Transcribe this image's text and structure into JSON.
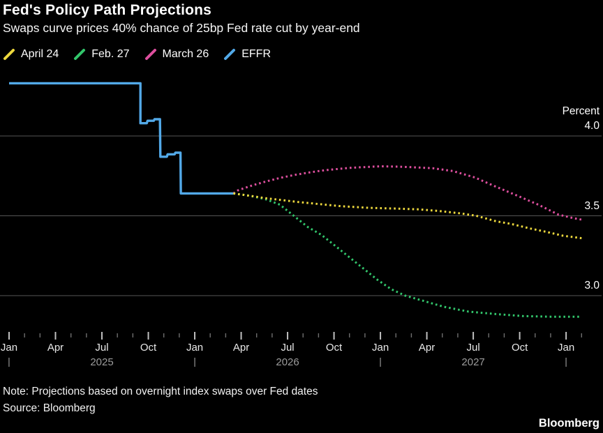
{
  "header": {
    "title": "Fed's Policy Path Projections",
    "subtitle": "Swaps curve prices 40% chance of 25bp Fed rate cut by year-end"
  },
  "legend": {
    "items": [
      {
        "label": "April 24",
        "color": "#EDD83D"
      },
      {
        "label": "Feb. 27",
        "color": "#32C56B"
      },
      {
        "label": "March 26",
        "color": "#DD4F9E"
      },
      {
        "label": "EFFR",
        "color": "#52A9E8"
      }
    ]
  },
  "footer": {
    "note": "Note: Projections based on overnight index swaps over Fed dates",
    "source": "Source: Bloomberg",
    "brand": "Bloomberg"
  },
  "colors": {
    "background": "#000000",
    "gridline": "#565656",
    "major_tick": "#c0c0c0",
    "minor_tick": "#6f6f6f",
    "month_label": "#e9e9e9",
    "year_label": "#9c9c9c"
  },
  "chart_data": {
    "type": "line",
    "title": "Fed's Policy Path Projections",
    "subtitle": "Swaps curve prices 40% chance of 25bp Fed rate cut by year-end",
    "x_unit": "months since Jan 2025",
    "xlim": [
      0,
      38.3
    ],
    "ylim": [
      2.76,
      4.37
    ],
    "grid": "horizontal",
    "legend_position": "top-left",
    "y_axis": {
      "unit": "Percent",
      "ticks": [
        {
          "value": 4.0,
          "label": "4.0"
        },
        {
          "value": 3.5,
          "label": "3.5"
        },
        {
          "value": 3.0,
          "label": "3.0"
        }
      ]
    },
    "x_axis": {
      "major_ticks": [
        {
          "m": 0,
          "label": "Jan"
        },
        {
          "m": 3,
          "label": "Apr"
        },
        {
          "m": 6,
          "label": "Jul"
        },
        {
          "m": 9,
          "label": "Oct"
        },
        {
          "m": 12,
          "label": "Jan"
        },
        {
          "m": 15,
          "label": "Apr"
        },
        {
          "m": 18,
          "label": "Jul"
        },
        {
          "m": 21,
          "label": "Oct"
        },
        {
          "m": 24,
          "label": "Jan"
        },
        {
          "m": 27,
          "label": "Apr"
        },
        {
          "m": 30,
          "label": "Jul"
        },
        {
          "m": 33,
          "label": "Oct"
        },
        {
          "m": 36,
          "label": "Jan"
        }
      ],
      "minor_ticks": [
        1,
        2,
        4,
        5,
        7,
        8,
        10,
        11,
        13,
        14,
        16,
        17,
        19,
        20,
        22,
        23,
        25,
        26,
        28,
        29,
        31,
        32,
        34,
        35,
        37
      ],
      "year_labels": [
        {
          "m": 6,
          "label": "2025"
        },
        {
          "m": 18,
          "label": "2026"
        },
        {
          "m": 30,
          "label": "2027"
        }
      ],
      "jan_markers": [
        0,
        12,
        24,
        36
      ]
    },
    "series": [
      {
        "name": "EFFR",
        "color": "#52A9E8",
        "style": "solid",
        "points": [
          [
            0,
            4.33
          ],
          [
            8.49,
            4.33
          ],
          [
            8.49,
            4.08
          ],
          [
            8.9,
            4.08
          ],
          [
            8.95,
            4.095
          ],
          [
            9.35,
            4.095
          ],
          [
            9.4,
            4.105
          ],
          [
            9.75,
            4.105
          ],
          [
            9.78,
            3.87
          ],
          [
            10.2,
            3.87
          ],
          [
            10.25,
            3.885
          ],
          [
            10.7,
            3.885
          ],
          [
            10.75,
            3.895
          ],
          [
            11.08,
            3.895
          ],
          [
            11.1,
            3.64
          ],
          [
            14.5,
            3.64
          ]
        ]
      },
      {
        "name": "March 26",
        "color": "#DD4F9E",
        "style": "dotted",
        "points": [
          [
            14.5,
            3.64
          ],
          [
            14.8,
            3.66
          ],
          [
            15.7,
            3.69
          ],
          [
            16.6,
            3.715
          ],
          [
            17.5,
            3.737
          ],
          [
            18.4,
            3.755
          ],
          [
            19.3,
            3.77
          ],
          [
            20.2,
            3.783
          ],
          [
            21.1,
            3.792
          ],
          [
            22.0,
            3.8
          ],
          [
            22.9,
            3.805
          ],
          [
            24.0,
            3.81
          ],
          [
            25.2,
            3.808
          ],
          [
            26.3,
            3.803
          ],
          [
            27.4,
            3.798
          ],
          [
            28.7,
            3.78
          ],
          [
            30.1,
            3.74
          ],
          [
            31.4,
            3.685
          ],
          [
            32.8,
            3.628
          ],
          [
            34.2,
            3.57
          ],
          [
            35.5,
            3.508
          ],
          [
            36.4,
            3.487
          ],
          [
            37.0,
            3.476
          ]
        ]
      },
      {
        "name": "Feb. 27",
        "color": "#32C56B",
        "style": "dotted",
        "points": [
          [
            14.5,
            3.64
          ],
          [
            15.6,
            3.625
          ],
          [
            16.6,
            3.603
          ],
          [
            17.5,
            3.57
          ],
          [
            18.4,
            3.5
          ],
          [
            19.3,
            3.43
          ],
          [
            20.2,
            3.38
          ],
          [
            21.1,
            3.31
          ],
          [
            22.0,
            3.24
          ],
          [
            22.9,
            3.17
          ],
          [
            23.8,
            3.1
          ],
          [
            24.7,
            3.04
          ],
          [
            25.6,
            3.0
          ],
          [
            26.5,
            2.975
          ],
          [
            28.1,
            2.93
          ],
          [
            29.7,
            2.9
          ],
          [
            31.4,
            2.885
          ],
          [
            33.2,
            2.872
          ],
          [
            35.0,
            2.868
          ],
          [
            37.0,
            2.868
          ]
        ]
      },
      {
        "name": "April 24",
        "color": "#EDD83D",
        "style": "dotted",
        "points": [
          [
            14.5,
            3.64
          ],
          [
            15.6,
            3.625
          ],
          [
            16.6,
            3.61
          ],
          [
            17.5,
            3.6
          ],
          [
            18.8,
            3.585
          ],
          [
            20.2,
            3.572
          ],
          [
            21.5,
            3.56
          ],
          [
            23.3,
            3.55
          ],
          [
            25.1,
            3.545
          ],
          [
            26.5,
            3.54
          ],
          [
            27.8,
            3.53
          ],
          [
            29.2,
            3.515
          ],
          [
            30.2,
            3.5
          ],
          [
            31.5,
            3.465
          ],
          [
            32.4,
            3.45
          ],
          [
            33.7,
            3.42
          ],
          [
            34.7,
            3.4
          ],
          [
            35.8,
            3.375
          ],
          [
            37.0,
            3.36
          ]
        ]
      }
    ]
  }
}
